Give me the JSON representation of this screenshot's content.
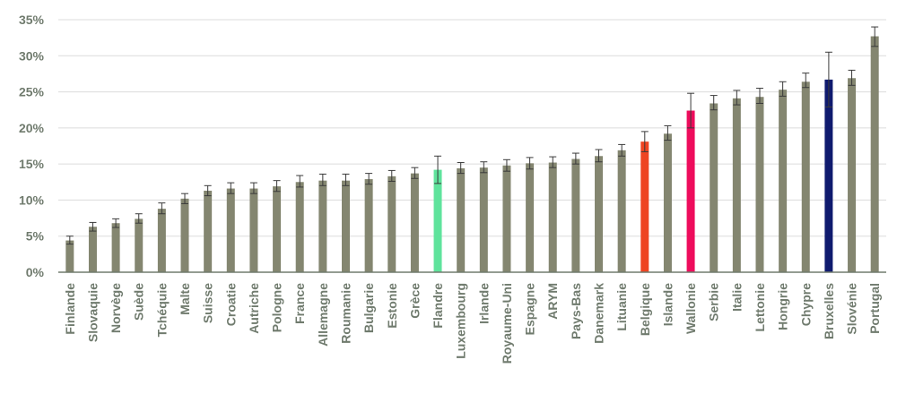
{
  "chart_data": {
    "type": "bar",
    "ylim": [
      0,
      35
    ],
    "yticks": [
      "0%",
      "5%",
      "10%",
      "15%",
      "20%",
      "25%",
      "30%",
      "35%"
    ],
    "ytick_values": [
      0,
      5,
      10,
      15,
      20,
      25,
      30,
      35
    ],
    "grid": true,
    "error_bars": true,
    "categories": [
      "Finlande",
      "Slovaquie",
      "Norvège",
      "Suède",
      "Tchéquie",
      "Malte",
      "Suisse",
      "Croatie",
      "Autriche",
      "Pologne",
      "France",
      "Allemagne",
      "Roumanie",
      "Bulgarie",
      "Estonie",
      "Grèce",
      "Flandre",
      "Luxembourg",
      "Irlande",
      "Royaume-Uni",
      "Espagne",
      "ARYM",
      "Pays-Bas",
      "Danemark",
      "Lituanie",
      "Belgique",
      "Islande",
      "Wallonie",
      "Serbie",
      "Italie",
      "Lettonie",
      "Hongrie",
      "Chypre",
      "Bruxelles",
      "Slovénie",
      "Portugal"
    ],
    "values": [
      4.4,
      6.3,
      6.8,
      7.4,
      8.8,
      10.2,
      11.3,
      11.6,
      11.6,
      11.9,
      12.5,
      12.7,
      12.7,
      12.9,
      13.3,
      13.7,
      14.2,
      14.4,
      14.5,
      14.8,
      15.1,
      15.2,
      15.7,
      16.1,
      16.9,
      18.1,
      19.2,
      22.4,
      23.4,
      24.1,
      24.3,
      25.3,
      26.4,
      26.7,
      26.9,
      32.7
    ],
    "error_low": [
      3.9,
      5.7,
      6.2,
      6.8,
      8.1,
      9.5,
      10.6,
      10.9,
      10.9,
      11.2,
      11.8,
      12.0,
      12.0,
      12.2,
      12.6,
      13.0,
      12.3,
      13.7,
      13.8,
      14.0,
      14.3,
      14.5,
      15.0,
      15.3,
      16.1,
      16.7,
      18.3,
      20.0,
      22.5,
      23.2,
      23.4,
      24.4,
      25.6,
      22.9,
      25.9,
      31.3
    ],
    "error_high": [
      5.0,
      6.9,
      7.4,
      8.1,
      9.6,
      10.9,
      12.0,
      12.4,
      12.4,
      12.7,
      13.4,
      13.6,
      13.6,
      13.7,
      14.1,
      14.5,
      16.1,
      15.2,
      15.3,
      15.6,
      15.9,
      16.0,
      16.5,
      17.0,
      17.7,
      19.5,
      20.3,
      24.8,
      24.5,
      25.2,
      25.5,
      26.4,
      27.6,
      30.5,
      28.0,
      34.0
    ],
    "colors": {
      "default": "#848670",
      "Flandre": "#5fe39c",
      "Belgique": "#ee4422",
      "Wallonie": "#ee0c5c",
      "Bruxelles": "#0f1a6e"
    },
    "axis_color": "#707b6e",
    "grid_color": "#dcdcdc"
  }
}
